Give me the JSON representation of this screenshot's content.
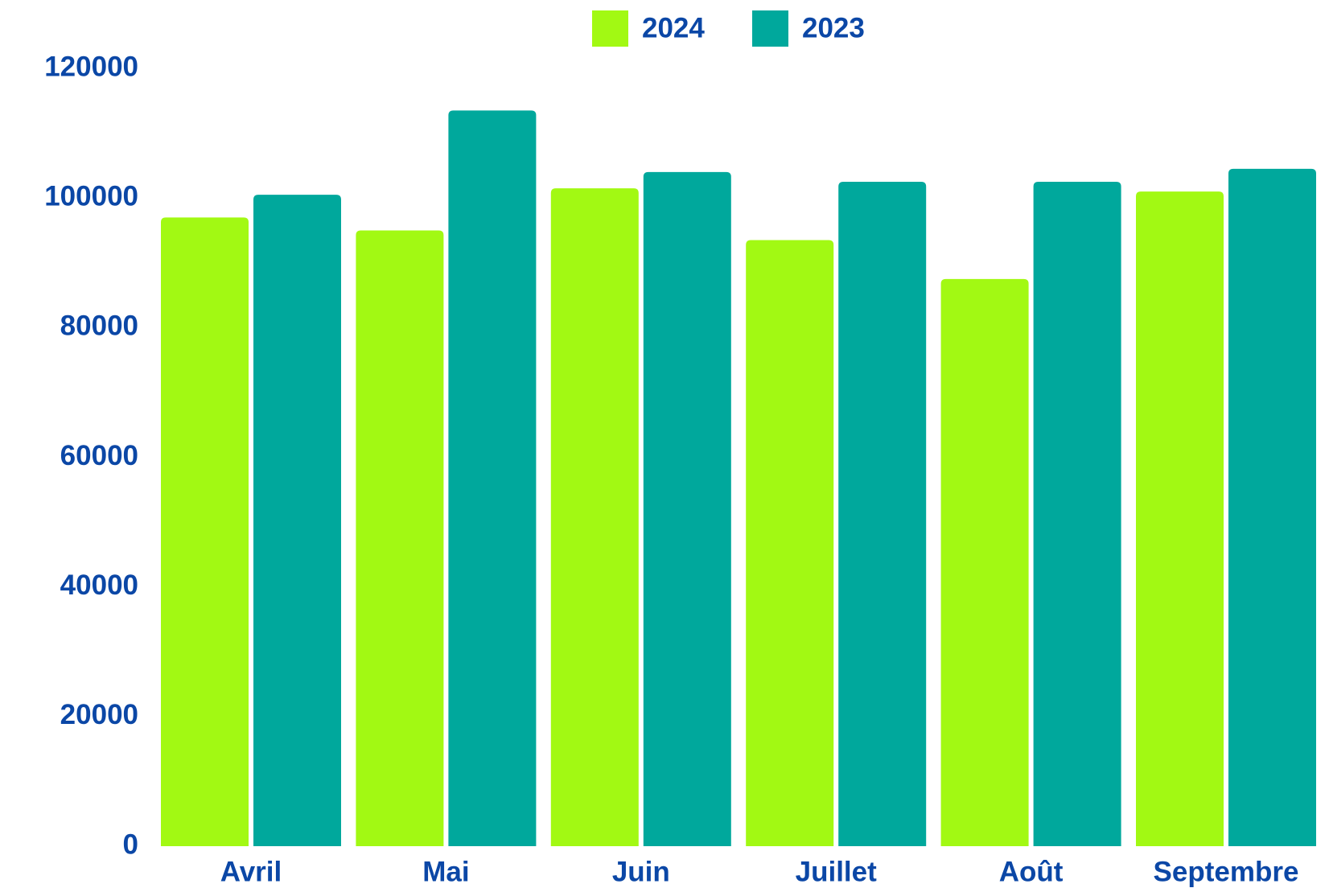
{
  "chart_data": {
    "type": "bar",
    "categories": [
      "Avril",
      "Mai",
      "Juin",
      "Juillet",
      "Août",
      "Septembre"
    ],
    "series": [
      {
        "name": "2024",
        "color": "#a2f913",
        "values": [
          97000,
          95000,
          101500,
          93500,
          87500,
          101000
        ]
      },
      {
        "name": "2023",
        "color": "#00a89c",
        "values": [
          100500,
          113500,
          104000,
          102500,
          102500,
          104500
        ]
      }
    ],
    "ylim": [
      0,
      120000
    ],
    "yticks": [
      0,
      20000,
      40000,
      60000,
      80000,
      100000,
      120000
    ],
    "legend": "top",
    "grid": false
  }
}
